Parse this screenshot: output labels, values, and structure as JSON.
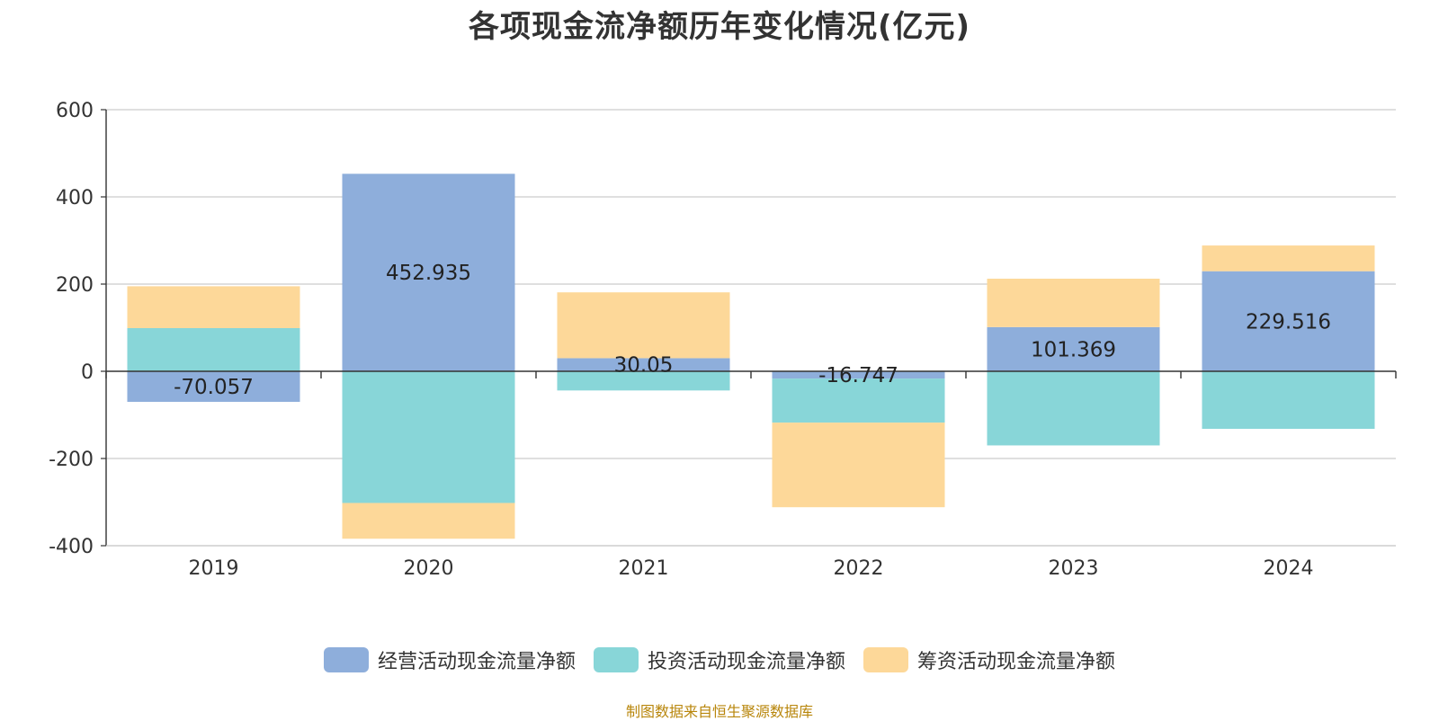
{
  "chart_data": {
    "type": "bar",
    "stacked": true,
    "title": "各项现金流净额历年变化情况(亿元)",
    "categories": [
      "2019",
      "2020",
      "2021",
      "2022",
      "2023",
      "2024"
    ],
    "series": [
      {
        "name": "经营活动现金流量净额",
        "color": "#8eaedb",
        "values": [
          -70.057,
          452.935,
          30.05,
          -16.747,
          101.369,
          229.516
        ]
      },
      {
        "name": "投资活动现金流量净额",
        "color": "#88d6d8",
        "values": [
          99,
          -302,
          -44,
          -101,
          -170,
          -132
        ]
      },
      {
        "name": "筹资活动现金流量净额",
        "color": "#fdd899",
        "values": [
          96,
          -82,
          151,
          -194,
          111,
          59
        ]
      }
    ],
    "data_labels": [
      "-70.057",
      "452.935",
      "30.05",
      "-16.747",
      "101.369",
      "229.516"
    ],
    "y_ticks": [
      600,
      400,
      200,
      0,
      -200,
      -400
    ],
    "ylim": [
      -400,
      600
    ],
    "grid": true,
    "legend_position": "bottom"
  },
  "source_note": "制图数据来自恒生聚源数据库"
}
